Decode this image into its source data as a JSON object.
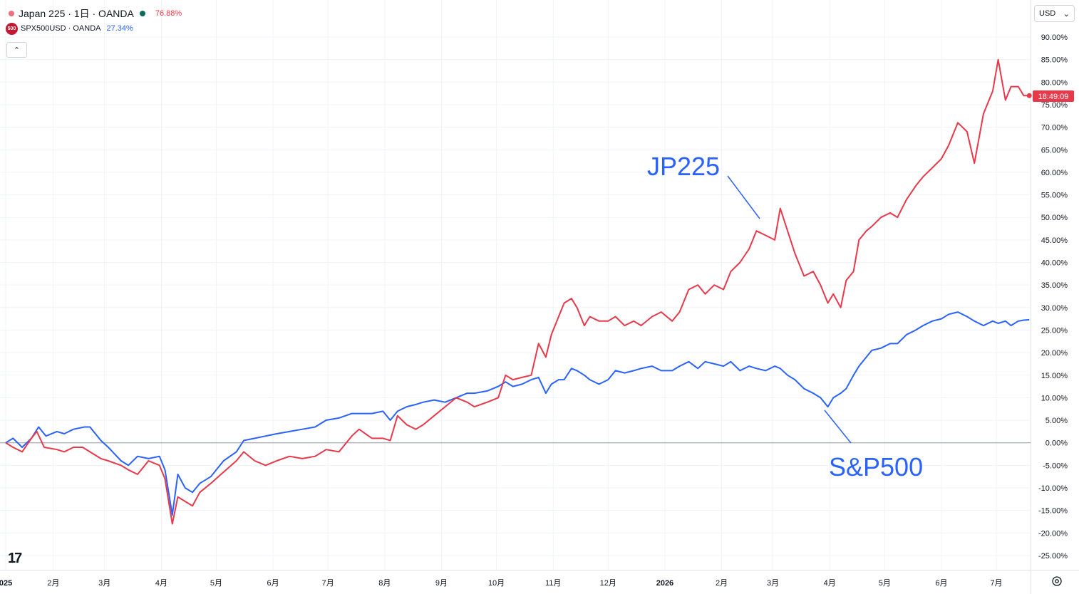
{
  "legend": {
    "series1": {
      "label": "Japan 225 · 1日 · OANDA",
      "value": "76.88%",
      "color": "#e8394a",
      "dot_color": "#f06d7a",
      "status_color": "#0b6b5a"
    },
    "series2": {
      "badge": "500",
      "label": "SPX500USD · OANDA",
      "value": "27.34%",
      "color": "#2962ff"
    }
  },
  "currency": {
    "label": "USD"
  },
  "price_tag": {
    "label": "18:49:09"
  },
  "annotations": {
    "jp": "JP225",
    "sp": "S&P500"
  },
  "logo": "17",
  "chart_data": {
    "type": "line",
    "x_ticks": [
      "025",
      "2月",
      "3月",
      "4月",
      "5月",
      "6月",
      "7月",
      "8月",
      "9月",
      "10月",
      "11月",
      "12月",
      "2026",
      "2月",
      "3月",
      "4月",
      "5月",
      "6月",
      "7月"
    ],
    "y_ticks": [
      "90.00%",
      "85.00%",
      "80.00%",
      "75.00%",
      "70.00%",
      "65.00%",
      "60.00%",
      "55.00%",
      "50.00%",
      "45.00%",
      "40.00%",
      "35.00%",
      "30.00%",
      "25.00%",
      "20.00%",
      "15.00%",
      "10.00%",
      "5.00%",
      "0.00%",
      "-5.00%",
      "-10.00%",
      "-15.00%",
      "-20.00%",
      "-25.00%"
    ],
    "ylim": [
      -25,
      90
    ],
    "series": [
      {
        "name": "Japan 225",
        "color": "#e8394a",
        "points": [
          [
            "2025-01-06",
            0
          ],
          [
            "2025-01-10",
            -1
          ],
          [
            "2025-01-15",
            -2
          ],
          [
            "2025-01-20",
            1
          ],
          [
            "2025-01-23",
            2.5
          ],
          [
            "2025-01-27",
            -1
          ],
          [
            "2025-02-03",
            -1.5
          ],
          [
            "2025-02-07",
            -2
          ],
          [
            "2025-02-12",
            -1
          ],
          [
            "2025-02-17",
            -1
          ],
          [
            "2025-02-21",
            -2
          ],
          [
            "2025-02-27",
            -3.5
          ],
          [
            "2025-03-03",
            -4
          ],
          [
            "2025-03-10",
            -5
          ],
          [
            "2025-03-14",
            -6
          ],
          [
            "2025-03-19",
            -7
          ],
          [
            "2025-03-25",
            -4
          ],
          [
            "2025-03-31",
            -5
          ],
          [
            "2025-04-03",
            -8
          ],
          [
            "2025-04-07",
            -18
          ],
          [
            "2025-04-10",
            -12
          ],
          [
            "2025-04-14",
            -13
          ],
          [
            "2025-04-18",
            -14
          ],
          [
            "2025-04-22",
            -11
          ],
          [
            "2025-04-28",
            -9
          ],
          [
            "2025-05-05",
            -6.5
          ],
          [
            "2025-05-12",
            -4
          ],
          [
            "2025-05-16",
            -2
          ],
          [
            "2025-05-22",
            -4
          ],
          [
            "2025-05-28",
            -5
          ],
          [
            "2025-06-03",
            -4
          ],
          [
            "2025-06-10",
            -3
          ],
          [
            "2025-06-17",
            -3.5
          ],
          [
            "2025-06-24",
            -3
          ],
          [
            "2025-06-30",
            -1.5
          ],
          [
            "2025-07-07",
            -2
          ],
          [
            "2025-07-14",
            1.5
          ],
          [
            "2025-07-18",
            3
          ],
          [
            "2025-07-25",
            1
          ],
          [
            "2025-07-31",
            1
          ],
          [
            "2025-08-04",
            0.5
          ],
          [
            "2025-08-08",
            6
          ],
          [
            "2025-08-13",
            4
          ],
          [
            "2025-08-18",
            3
          ],
          [
            "2025-08-22",
            4
          ],
          [
            "2025-08-28",
            6
          ],
          [
            "2025-09-03",
            8
          ],
          [
            "2025-09-09",
            10
          ],
          [
            "2025-09-15",
            9
          ],
          [
            "2025-09-19",
            8
          ],
          [
            "2025-09-26",
            9
          ],
          [
            "2025-10-02",
            10
          ],
          [
            "2025-10-06",
            15
          ],
          [
            "2025-10-10",
            14
          ],
          [
            "2025-10-15",
            14.5
          ],
          [
            "2025-10-20",
            15
          ],
          [
            "2025-10-24",
            22
          ],
          [
            "2025-10-28",
            19
          ],
          [
            "2025-10-31",
            24
          ],
          [
            "2025-11-04",
            28
          ],
          [
            "2025-11-07",
            31
          ],
          [
            "2025-11-11",
            32
          ],
          [
            "2025-11-14",
            30
          ],
          [
            "2025-11-18",
            26
          ],
          [
            "2025-11-21",
            28
          ],
          [
            "2025-11-26",
            27
          ],
          [
            "2025-12-01",
            27
          ],
          [
            "2025-12-05",
            28
          ],
          [
            "2025-12-10",
            26
          ],
          [
            "2025-12-15",
            27
          ],
          [
            "2025-12-19",
            26
          ],
          [
            "2025-12-25",
            28
          ],
          [
            "2025-12-30",
            29
          ],
          [
            "2026-01-05",
            27
          ],
          [
            "2026-01-09",
            29
          ],
          [
            "2026-01-14",
            34
          ],
          [
            "2026-01-19",
            35
          ],
          [
            "2026-01-23",
            33
          ],
          [
            "2026-01-28",
            35
          ],
          [
            "2026-02-02",
            34
          ],
          [
            "2026-02-06",
            38
          ],
          [
            "2026-02-11",
            40
          ],
          [
            "2026-02-16",
            43
          ],
          [
            "2026-02-20",
            47
          ],
          [
            "2026-02-25",
            46
          ],
          [
            "2026-03-02",
            45
          ],
          [
            "2026-03-05",
            52
          ],
          [
            "2026-03-09",
            47
          ],
          [
            "2026-03-13",
            42
          ],
          [
            "2026-03-18",
            37
          ],
          [
            "2026-03-23",
            38
          ],
          [
            "2026-03-27",
            35
          ],
          [
            "2026-03-31",
            31
          ],
          [
            "2026-04-03",
            33
          ],
          [
            "2026-04-07",
            30
          ],
          [
            "2026-04-10",
            36
          ],
          [
            "2026-04-14",
            38
          ],
          [
            "2026-04-17",
            45
          ],
          [
            "2026-04-21",
            47
          ],
          [
            "2026-04-24",
            48
          ],
          [
            "2026-04-29",
            50
          ],
          [
            "2026-05-04",
            51
          ],
          [
            "2026-05-08",
            50
          ],
          [
            "2026-05-13",
            54
          ],
          [
            "2026-05-18",
            57
          ],
          [
            "2026-05-22",
            59
          ],
          [
            "2026-05-27",
            61
          ],
          [
            "2026-06-01",
            63
          ],
          [
            "2026-06-05",
            66
          ],
          [
            "2026-06-10",
            71
          ],
          [
            "2026-06-15",
            69
          ],
          [
            "2026-06-19",
            62
          ],
          [
            "2026-06-24",
            73
          ],
          [
            "2026-06-29",
            78
          ],
          [
            "2026-07-02",
            85
          ],
          [
            "2026-07-06",
            76
          ],
          [
            "2026-07-09",
            79
          ],
          [
            "2026-07-13",
            79
          ],
          [
            "2026-07-16",
            77
          ],
          [
            "2026-07-19",
            77
          ]
        ]
      },
      {
        "name": "SPX500USD",
        "color": "#2962ff",
        "points": [
          [
            "2025-01-06",
            0
          ],
          [
            "2025-01-10",
            1
          ],
          [
            "2025-01-15",
            -1
          ],
          [
            "2025-01-20",
            1
          ],
          [
            "2025-01-24",
            3.5
          ],
          [
            "2025-01-28",
            1.5
          ],
          [
            "2025-02-03",
            2.5
          ],
          [
            "2025-02-07",
            2
          ],
          [
            "2025-02-12",
            3
          ],
          [
            "2025-02-18",
            3.5
          ],
          [
            "2025-02-21",
            3.5
          ],
          [
            "2025-02-27",
            0.5
          ],
          [
            "2025-03-03",
            -1
          ],
          [
            "2025-03-10",
            -4
          ],
          [
            "2025-03-14",
            -5
          ],
          [
            "2025-03-19",
            -3
          ],
          [
            "2025-03-25",
            -3.5
          ],
          [
            "2025-03-31",
            -3
          ],
          [
            "2025-04-03",
            -6
          ],
          [
            "2025-04-07",
            -16
          ],
          [
            "2025-04-10",
            -7
          ],
          [
            "2025-04-14",
            -10
          ],
          [
            "2025-04-18",
            -11
          ],
          [
            "2025-04-22",
            -9
          ],
          [
            "2025-04-28",
            -7.5
          ],
          [
            "2025-05-05",
            -4
          ],
          [
            "2025-05-12",
            -2
          ],
          [
            "2025-05-16",
            0.5
          ],
          [
            "2025-05-22",
            1
          ],
          [
            "2025-05-28",
            1.5
          ],
          [
            "2025-06-03",
            2
          ],
          [
            "2025-06-10",
            2.5
          ],
          [
            "2025-06-17",
            3
          ],
          [
            "2025-06-24",
            3.5
          ],
          [
            "2025-06-30",
            5
          ],
          [
            "2025-07-07",
            5.5
          ],
          [
            "2025-07-14",
            6.5
          ],
          [
            "2025-07-18",
            6.5
          ],
          [
            "2025-07-25",
            6.5
          ],
          [
            "2025-07-31",
            7
          ],
          [
            "2025-08-04",
            5
          ],
          [
            "2025-08-08",
            7
          ],
          [
            "2025-08-13",
            8
          ],
          [
            "2025-08-18",
            8.5
          ],
          [
            "2025-08-22",
            9
          ],
          [
            "2025-08-28",
            9.5
          ],
          [
            "2025-09-03",
            9
          ],
          [
            "2025-09-09",
            10
          ],
          [
            "2025-09-15",
            11
          ],
          [
            "2025-09-19",
            11
          ],
          [
            "2025-09-26",
            11.5
          ],
          [
            "2025-10-02",
            12.5
          ],
          [
            "2025-10-06",
            13.5
          ],
          [
            "2025-10-10",
            12.5
          ],
          [
            "2025-10-15",
            13
          ],
          [
            "2025-10-20",
            14
          ],
          [
            "2025-10-24",
            14.5
          ],
          [
            "2025-10-28",
            11
          ],
          [
            "2025-10-31",
            13
          ],
          [
            "2025-11-04",
            14
          ],
          [
            "2025-11-07",
            14
          ],
          [
            "2025-11-11",
            16.5
          ],
          [
            "2025-11-14",
            16
          ],
          [
            "2025-11-18",
            15
          ],
          [
            "2025-11-21",
            14
          ],
          [
            "2025-11-26",
            13
          ],
          [
            "2025-12-01",
            14
          ],
          [
            "2025-12-05",
            16
          ],
          [
            "2025-12-10",
            15.5
          ],
          [
            "2025-12-15",
            16
          ],
          [
            "2025-12-19",
            16.5
          ],
          [
            "2025-12-25",
            17
          ],
          [
            "2025-12-30",
            16
          ],
          [
            "2026-01-05",
            16
          ],
          [
            "2026-01-09",
            17
          ],
          [
            "2026-01-14",
            18
          ],
          [
            "2026-01-19",
            16.5
          ],
          [
            "2026-01-23",
            18
          ],
          [
            "2026-01-28",
            17.5
          ],
          [
            "2026-02-02",
            17
          ],
          [
            "2026-02-06",
            18
          ],
          [
            "2026-02-11",
            16
          ],
          [
            "2026-02-16",
            17
          ],
          [
            "2026-02-20",
            16.5
          ],
          [
            "2026-02-25",
            16
          ],
          [
            "2026-03-02",
            17
          ],
          [
            "2026-03-05",
            16.5
          ],
          [
            "2026-03-09",
            15
          ],
          [
            "2026-03-13",
            14
          ],
          [
            "2026-03-18",
            12
          ],
          [
            "2026-03-23",
            11
          ],
          [
            "2026-03-27",
            10
          ],
          [
            "2026-03-31",
            8
          ],
          [
            "2026-04-03",
            10
          ],
          [
            "2026-04-07",
            11
          ],
          [
            "2026-04-10",
            12
          ],
          [
            "2026-04-14",
            15
          ],
          [
            "2026-04-17",
            17
          ],
          [
            "2026-04-21",
            19
          ],
          [
            "2026-04-24",
            20.5
          ],
          [
            "2026-04-29",
            21
          ],
          [
            "2026-05-04",
            22
          ],
          [
            "2026-05-08",
            22
          ],
          [
            "2026-05-13",
            24
          ],
          [
            "2026-05-18",
            25
          ],
          [
            "2026-05-22",
            26
          ],
          [
            "2026-05-27",
            27
          ],
          [
            "2026-06-01",
            27.5
          ],
          [
            "2026-06-05",
            28.5
          ],
          [
            "2026-06-10",
            29
          ],
          [
            "2026-06-15",
            28
          ],
          [
            "2026-06-19",
            27
          ],
          [
            "2026-06-24",
            26
          ],
          [
            "2026-06-29",
            27
          ],
          [
            "2026-07-02",
            26.5
          ],
          [
            "2026-07-06",
            27
          ],
          [
            "2026-07-09",
            26
          ],
          [
            "2026-07-13",
            27
          ],
          [
            "2026-07-16",
            27.2
          ],
          [
            "2026-07-19",
            27.3
          ]
        ]
      }
    ]
  }
}
